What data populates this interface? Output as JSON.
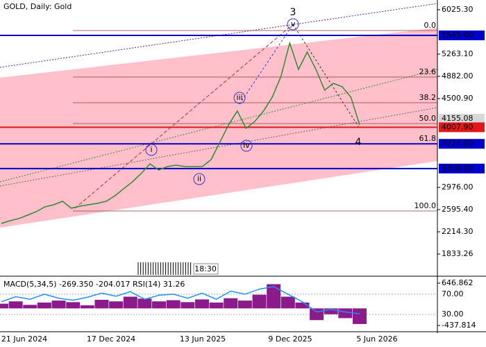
{
  "header": {
    "title": "GOLD, Daily:  Gold"
  },
  "chart_data": {
    "type": "line",
    "color": "#2e8b2e",
    "values": [
      2357,
      2405,
      2441,
      2500,
      2560,
      2643,
      2679,
      2738,
      2619,
      2655,
      2679,
      2703,
      2738,
      2834,
      2953,
      3072,
      3215,
      3381,
      3274,
      3334,
      3358,
      3334,
      3334,
      3334,
      3453,
      3751,
      4048,
      4287,
      3989,
      4108,
      4287,
      4525,
      4882,
      5454,
      5001,
      5299,
      5001,
      4644,
      4763,
      4704,
      4525,
      4048
    ],
    "ylim": [
      1464,
      6192
    ],
    "yticks": [
      {
        "value": 6025.3,
        "label": "6025.30"
      },
      {
        "value": 5263.1,
        "label": "5263.10"
      },
      {
        "value": 4882,
        "label": "4882.00"
      },
      {
        "value": 4500.9,
        "label": "4500.90"
      },
      {
        "value": 2976,
        "label": "2976.00"
      },
      {
        "value": 2595.4,
        "label": "2595.40"
      },
      {
        "value": 2214.3,
        "label": "2214.30"
      },
      {
        "value": 1833.26,
        "label": "1833.26"
      }
    ],
    "levels": [
      {
        "value": 5585,
        "label": "5585.00",
        "color": "#0000cd"
      },
      {
        "value": 4007.9,
        "label": "4007.90",
        "color": "#e01818"
      },
      {
        "value": 3724,
        "label": "3724.00",
        "color": "#0000cd"
      },
      {
        "value": 3300,
        "label": "3300.00",
        "color": "#0000cd"
      }
    ],
    "current_price": {
      "value": 4155.08,
      "label": "4155.08"
    },
    "fib_levels": [
      {
        "label": "0.0",
        "value": 5668
      },
      {
        "label": "23.6",
        "value": 4870
      },
      {
        "label": "38.2",
        "value": 4429
      },
      {
        "label": "50.0",
        "value": 4072
      },
      {
        "label": "61.8",
        "value": 3727
      },
      {
        "label": "100.0",
        "value": 2572
      }
    ],
    "wave_labels": [
      "3",
      "4",
      "v",
      "iii",
      "iv",
      "i",
      "ii"
    ],
    "time_labels": [
      "21 Jun 2024",
      "17 Dec 2024",
      "13 Jun 2025",
      "9 Dec 2025",
      "5 Jun 2026"
    ],
    "timer": "18:30",
    "indicator": {
      "title": "MACD(5,34,5) -269.350 -204.017 RSI(14) 31.26",
      "ylim": [
        -598,
        789
      ],
      "yticks": [
        646.862,
        -437.814
      ],
      "macd": [
        120,
        180,
        90,
        150,
        200,
        160,
        80,
        220,
        180,
        300,
        250,
        180,
        210,
        160,
        230,
        150,
        260,
        200,
        350,
        620,
        300,
        150,
        -300,
        -150,
        -250,
        -400
      ],
      "rsi": [
        55,
        65,
        60,
        70,
        62,
        58,
        64,
        72,
        66,
        75,
        60,
        68,
        70,
        62,
        72,
        60,
        76,
        70,
        80,
        85,
        70,
        55,
        35,
        40,
        35,
        31.26
      ],
      "rsi_ylim": [
        0,
        100
      ],
      "rsi_ticks": [
        {
          "value": 70,
          "label": "70.00"
        },
        {
          "value": 30,
          "label": "30.00"
        }
      ]
    }
  }
}
